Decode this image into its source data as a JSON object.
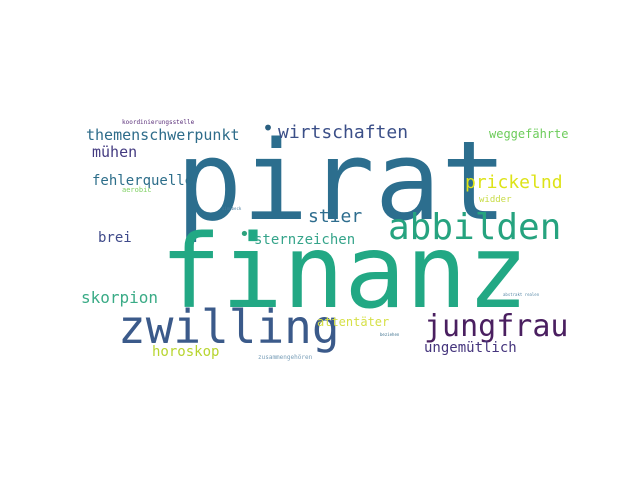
{
  "words": [
    {
      "id": "pirat",
      "text": "pirat",
      "color": "#2c6e8e"
    },
    {
      "id": "finanz",
      "text": "finanz",
      "color": "#22a884"
    },
    {
      "id": "zwilling",
      "text": "zwilling",
      "color": "#3b5a8a"
    },
    {
      "id": "abbilden",
      "text": "abbilden",
      "color": "#26a37f"
    },
    {
      "id": "jungfrau",
      "text": "jungfrau",
      "color": "#4a1f60"
    },
    {
      "id": "wirtschaften",
      "text": "wirtschaften",
      "color": "#3b4f88"
    },
    {
      "id": "stier",
      "text": "stier",
      "color": "#2e6d8e"
    },
    {
      "id": "themenschwerpunkt",
      "text": "themenschwerpunkt",
      "color": "#2e6c8a"
    },
    {
      "id": "muehen",
      "text": "mühen",
      "color": "#433a80"
    },
    {
      "id": "fehlerquelle",
      "text": "fehlerquelle",
      "color": "#2d6e8a"
    },
    {
      "id": "prickelnd",
      "text": "prickelnd",
      "color": "#dde318"
    },
    {
      "id": "sternzeichen",
      "text": "sternzeichen",
      "color": "#35a48a"
    },
    {
      "id": "brei",
      "text": "brei",
      "color": "#3f4a8a"
    },
    {
      "id": "skorpion",
      "text": "skorpion",
      "color": "#3aab86"
    },
    {
      "id": "horoskop",
      "text": "horoskop",
      "color": "#b8d530"
    },
    {
      "id": "attentaeter",
      "text": "attentäter",
      "color": "#d6e047"
    },
    {
      "id": "ungemuetlich",
      "text": "ungemütlich",
      "color": "#45357d"
    },
    {
      "id": "weggefaehrte",
      "text": "weggefährte",
      "color": "#6ccc5a"
    },
    {
      "id": "widder",
      "text": "widder",
      "color": "#c8dc45"
    },
    {
      "id": "aerobic",
      "text": "aerobic",
      "color": "#7dd060"
    },
    {
      "id": "koordinierungsstelle",
      "text": "koordinierungsstelle",
      "color": "#5a2f7a"
    },
    {
      "id": "zusammengehoeren",
      "text": "zusammengehören",
      "color": "#7a9fb8"
    },
    {
      "id": "tiny-1",
      "text": "sinnbeck",
      "color": "#4a7fa0"
    },
    {
      "id": "tiny-2",
      "text": "beziehen",
      "color": "#3b6f8c"
    },
    {
      "id": "tiny-3",
      "text": "abstrakt realen",
      "color": "#5a8aa8"
    },
    {
      "id": "dot",
      "text": "•",
      "color": "#2a5f80"
    },
    {
      "id": "dot2",
      "text": "•",
      "color": "#2da27d"
    }
  ]
}
